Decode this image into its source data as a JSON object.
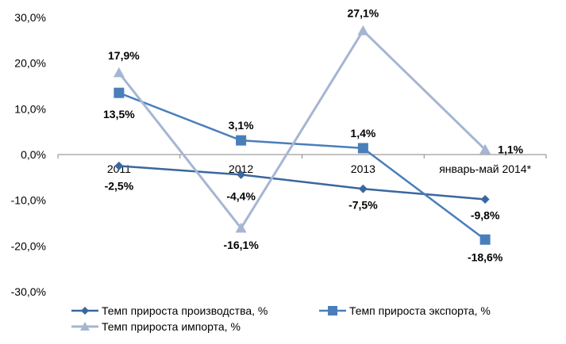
{
  "chart_data": {
    "type": "line",
    "categories": [
      "2011",
      "2012",
      "2013",
      "январь-май 2014*"
    ],
    "ylim": [
      -30,
      30
    ],
    "yticks": [
      "30,0%",
      "20,0%",
      "10,0%",
      "0,0%",
      "-10,0%",
      "-20,0%",
      "-30,0%"
    ],
    "grid": false,
    "legend_position": "bottom",
    "series": [
      {
        "name": "Темп прироста производства, %",
        "values": [
          -2.5,
          -4.4,
          -7.5,
          -9.8
        ],
        "labels": [
          "-2,5%",
          "-4,4%",
          "-7,5%",
          "-9,8%"
        ],
        "color": "#3a679e",
        "marker": "diamond"
      },
      {
        "name": "Темп прироста экспорта, %",
        "values": [
          13.5,
          3.1,
          1.4,
          -18.6
        ],
        "labels": [
          "13,5%",
          "3,1%",
          "1,4%",
          "-18,6%"
        ],
        "color": "#4a7ebb",
        "marker": "square"
      },
      {
        "name": "Темп прироста импорта, %",
        "values": [
          17.9,
          -16.1,
          27.1,
          1.1
        ],
        "labels": [
          "17,9%",
          "-16,1%",
          "27,1%",
          "1,1%"
        ],
        "color": "#a5b6d3",
        "marker": "triangle"
      }
    ]
  }
}
